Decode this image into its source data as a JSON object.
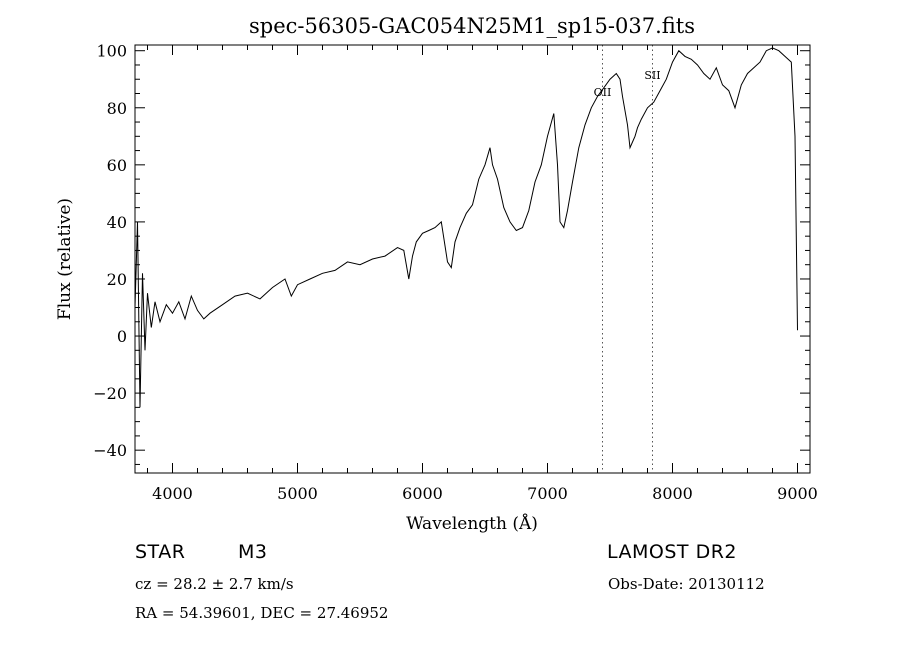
{
  "chart_data": {
    "type": "line",
    "title": "spec-56305-GAC054N25M1_sp15-037.fits",
    "xlabel": "Wavelength (Å)",
    "ylabel": "Flux (relative)",
    "xlim": [
      3700,
      9100
    ],
    "ylim": [
      -48,
      102
    ],
    "x_ticks": [
      4000,
      5000,
      6000,
      7000,
      8000,
      9000
    ],
    "y_ticks": [
      -40,
      -20,
      0,
      20,
      40,
      60,
      80,
      100
    ],
    "x_tick_labels": [
      "4000",
      "5000",
      "6000",
      "7000",
      "8000",
      "9000"
    ],
    "y_tick_labels": [
      "−40",
      "−20",
      "0",
      "20",
      "40",
      "60",
      "80",
      "100"
    ],
    "grid": false,
    "series": [
      {
        "x": [
          3700,
          3720,
          3740,
          3760,
          3780,
          3800,
          3830,
          3860,
          3900,
          3950,
          4000,
          4050,
          4100,
          4150,
          4200,
          4250,
          4300,
          4400,
          4500,
          4600,
          4700,
          4800,
          4900,
          4950,
          5000,
          5100,
          5200,
          5300,
          5400,
          5500,
          5600,
          5700,
          5800,
          5850,
          5890,
          5920,
          5950,
          6000,
          6050,
          6100,
          6150,
          6200,
          6230,
          6260,
          6300,
          6350,
          6400,
          6450,
          6500,
          6540,
          6560,
          6600,
          6650,
          6700,
          6750,
          6800,
          6850,
          6900,
          6950,
          7000,
          7050,
          7080,
          7100,
          7130,
          7160,
          7200,
          7250,
          7300,
          7350,
          7400,
          7450,
          7500,
          7550,
          7580,
          7600,
          7640,
          7660,
          7680,
          7700,
          7720,
          7750,
          7800,
          7850,
          7900,
          7950,
          8000,
          8050,
          8100,
          8150,
          8200,
          8250,
          8300,
          8350,
          8400,
          8450,
          8500,
          8550,
          8600,
          8650,
          8700,
          8750,
          8800,
          8850,
          8900,
          8950,
          8980,
          9000
        ],
        "y": [
          10,
          40,
          -25,
          22,
          -5,
          15,
          3,
          12,
          5,
          11,
          8,
          12,
          6,
          14,
          9,
          6,
          8,
          11,
          14,
          15,
          13,
          17,
          20,
          14,
          18,
          20,
          22,
          23,
          26,
          25,
          27,
          28,
          31,
          30,
          20,
          28,
          33,
          36,
          37,
          38,
          40,
          26,
          24,
          33,
          38,
          43,
          46,
          55,
          60,
          66,
          60,
          55,
          45,
          40,
          37,
          38,
          44,
          54,
          60,
          70,
          78,
          60,
          40,
          38,
          44,
          54,
          66,
          74,
          80,
          84,
          87,
          90,
          92,
          90,
          84,
          74,
          66,
          68,
          70,
          73,
          76,
          80,
          82,
          86,
          90,
          96,
          100,
          98,
          97,
          95,
          92,
          90,
          94,
          88,
          86,
          80,
          88,
          92,
          94,
          96,
          100,
          101,
          100,
          98,
          96,
          70,
          2
        ]
      }
    ],
    "line_markers": [
      {
        "label": "OII",
        "x": 7440
      },
      {
        "label": "SII",
        "x": 7840
      }
    ]
  },
  "info": {
    "object_type": "STAR",
    "subclass": "M3",
    "survey": "LAMOST DR2",
    "cz": "cz = 28.2 ± 2.7 km/s",
    "obs_date": "Obs-Date: 20130112",
    "coords": "RA =  54.39601, DEC =  27.46952"
  }
}
